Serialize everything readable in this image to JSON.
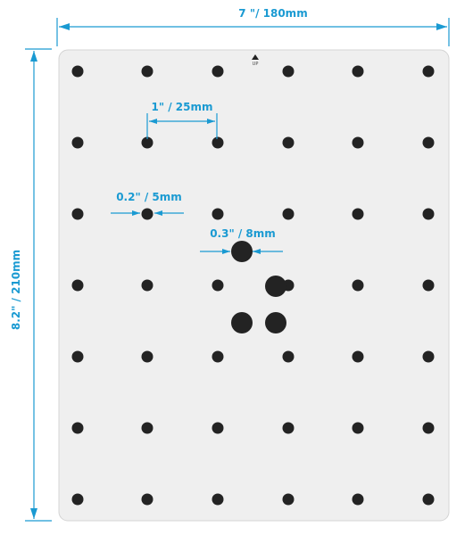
{
  "dimensions": {
    "width_label": "7 \"/ 180mm",
    "height_label": "8.2\" / 210mm",
    "spacing_label": "1\" / 25mm",
    "small_hole_label": "0.2\" / 5mm",
    "large_hole_label": "0.3\" / 8mm"
  },
  "orientation": {
    "up_label": "UP"
  },
  "colors": {
    "accent": "#1a9ad2",
    "plate": "#efefef",
    "hole": "#232323"
  },
  "icons": {
    "up": "triangle-up-icon"
  }
}
